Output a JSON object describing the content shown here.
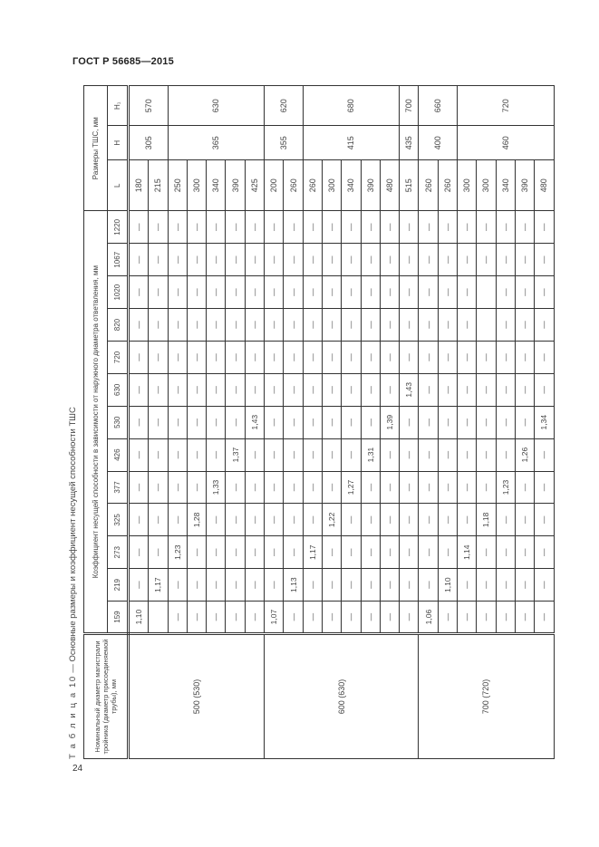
{
  "document": {
    "standard": "ГОСТ Р 56685—2015",
    "page_number": "24"
  },
  "caption": {
    "prefix": "Т а б л и ц а 10",
    "text": " — Основные размеры и коэффициент несущей способности ТШС"
  },
  "table": {
    "headers": {
      "nominal": "Номинальный диаметр магистрали тройника (диаметр присоединяемой трубы), мм",
      "coefficient": "Коэффициент несущей способности в зависимости от наружного диаметра ответвления, мм",
      "branch_diameters": [
        "159",
        "219",
        "273",
        "325",
        "377",
        "426",
        "530",
        "630",
        "720",
        "820",
        "1020",
        "1067",
        "1220"
      ],
      "dimensions": "Размеры ТШС, мм",
      "L": "L",
      "H": "H",
      "H1": "H₁"
    },
    "groups": [
      {
        "nominal": "500 (530)",
        "rows": [
          {
            "L": "180",
            "H": "305",
            "H_span": 2,
            "H1": "570",
            "H1_span": 2,
            "k": [
              "1,10",
              "—",
              "—",
              "—",
              "—",
              "—",
              "—",
              "—",
              "—",
              "—",
              "—",
              "—",
              "—"
            ]
          },
          {
            "L": "215",
            "k": [
              "",
              "1,17",
              "—",
              "—",
              "—",
              "—",
              "—",
              "—",
              "—",
              "—",
              "—",
              "—",
              "—"
            ]
          },
          {
            "L": "250",
            "H": "365",
            "H_span": 5,
            "H1": "630",
            "H1_span": 5,
            "k": [
              "—",
              "—",
              "1,23",
              "—",
              "—",
              "—",
              "—",
              "—",
              "—",
              "—",
              "—",
              "—",
              "—"
            ]
          },
          {
            "L": "300",
            "k": [
              "—",
              "—",
              "—",
              "1,28",
              "—",
              "—",
              "—",
              "—",
              "—",
              "—",
              "—",
              "—",
              "—"
            ]
          },
          {
            "L": "340",
            "k": [
              "—",
              "—",
              "—",
              "—",
              "1,33",
              "—",
              "—",
              "—",
              "—",
              "—",
              "—",
              "—",
              "—"
            ]
          },
          {
            "L": "390",
            "k": [
              "—",
              "—",
              "—",
              "—",
              "—",
              "1,37",
              "—",
              "—",
              "—",
              "—",
              "—",
              "—",
              "—"
            ]
          },
          {
            "L": "425",
            "k": [
              "—",
              "—",
              "—",
              "—",
              "—",
              "—",
              "1,43",
              "—",
              "—",
              "—",
              "—",
              "—",
              "—"
            ]
          }
        ]
      },
      {
        "nominal": "600 (630)",
        "rows": [
          {
            "L": "200",
            "H": "355",
            "H_span": 2,
            "H1": "620",
            "H1_span": 2,
            "k": [
              "1,07",
              "—",
              "—",
              "—",
              "—",
              "—",
              "—",
              "—",
              "—",
              "—",
              "—",
              "—",
              "—"
            ]
          },
          {
            "L": "260",
            "k": [
              "—",
              "1,13",
              "—",
              "—",
              "—",
              "—",
              "—",
              "—",
              "—",
              "—",
              "—",
              "—",
              "—"
            ]
          },
          {
            "L": "260",
            "H": "415",
            "H_span": 5,
            "H1": "680",
            "H1_span": 5,
            "k": [
              "—",
              "—",
              "1,17",
              "—",
              "—",
              "—",
              "—",
              "—",
              "—",
              "—",
              "—",
              "—",
              "—"
            ]
          },
          {
            "L": "300",
            "k": [
              "—",
              "—",
              "—",
              "1,22",
              "—",
              "—",
              "—",
              "—",
              "—",
              "—",
              "—",
              "—",
              "—"
            ]
          },
          {
            "L": "340",
            "k": [
              "—",
              "—",
              "—",
              "—",
              "1,27",
              "—",
              "—",
              "—",
              "—",
              "—",
              "—",
              "—",
              "—"
            ]
          },
          {
            "L": "390",
            "k": [
              "—",
              "—",
              "—",
              "—",
              "—",
              "1,31",
              "—",
              "—",
              "—",
              "—",
              "—",
              "—",
              "—"
            ]
          },
          {
            "L": "480",
            "k": [
              "—",
              "—",
              "—",
              "—",
              "—",
              "—",
              "1,39",
              "—",
              "—",
              "—",
              "—",
              "—",
              "—"
            ]
          },
          {
            "L": "515",
            "H": "435",
            "H_span": 1,
            "H1": "700",
            "H1_span": 1,
            "k": [
              "—",
              "—",
              "—",
              "—",
              "—",
              "—",
              "—",
              "1,43",
              "—",
              "—",
              "—",
              "—",
              "—"
            ]
          }
        ]
      },
      {
        "nominal": "700 (720)",
        "rows": [
          {
            "L": "260",
            "H": "400",
            "H_span": 2,
            "H1": "660",
            "H1_span": 2,
            "k": [
              "1,06",
              "—",
              "—",
              "—",
              "—",
              "—",
              "—",
              "—",
              "—",
              "—",
              "—",
              "—",
              "—"
            ]
          },
          {
            "L": "260",
            "k": [
              "—",
              "1,10",
              "—",
              "—",
              "—",
              "—",
              "—",
              "—",
              "—",
              "—",
              "—",
              "—",
              "—"
            ]
          },
          {
            "L": "300",
            "H": "460",
            "H_span": 5,
            "H1": "720",
            "H1_span": 5,
            "k": [
              "—",
              "—",
              "1,14",
              "—",
              "—",
              "—",
              "—",
              "—",
              "—",
              "—",
              "—",
              "—",
              "—"
            ]
          },
          {
            "L": "300",
            "k": [
              "—",
              "—",
              "—",
              "1,18",
              "—",
              "—",
              "—",
              "—",
              "—",
              "",
              "",
              "—",
              "—"
            ]
          },
          {
            "L": "340",
            "k": [
              "—",
              "—",
              "—",
              "—",
              "1,23",
              "—",
              "—",
              "—",
              "—",
              "—",
              "—",
              "—",
              "—"
            ]
          },
          {
            "L": "390",
            "k": [
              "—",
              "—",
              "—",
              "—",
              "—",
              "1,26",
              "—",
              "—",
              "—",
              "—",
              "—",
              "—",
              "—"
            ]
          },
          {
            "L": "480",
            "k": [
              "—",
              "—",
              "—",
              "—",
              "—",
              "—",
              "1,34",
              "—",
              "—",
              "—",
              "—",
              "—",
              "—"
            ]
          }
        ]
      }
    ]
  }
}
